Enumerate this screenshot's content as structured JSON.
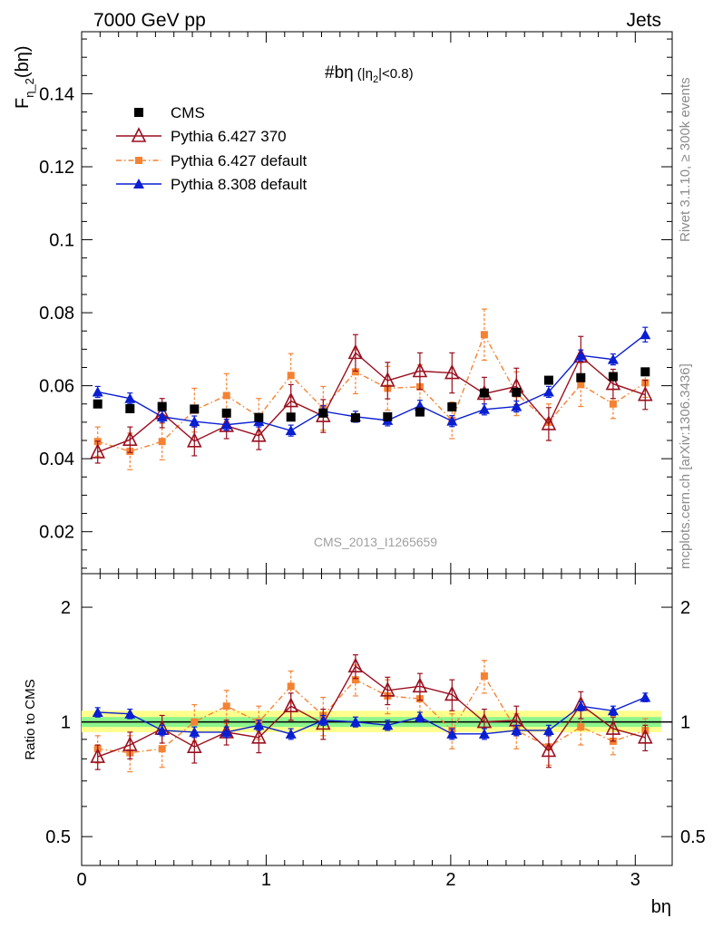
{
  "header": {
    "left": "7000 GeV pp",
    "right": "Jets"
  },
  "side_labels": {
    "rivet": "Rivet 3.1.10, ≥ 300k events",
    "mcplots": "mcplots.cern.ch [arXiv:1306.3436]"
  },
  "analysis_id": "CMS_2013_I1265659",
  "plot_title": {
    "main": "#bη",
    "cut_pre": "(|η",
    "cut_sub": "2",
    "cut_post": "|<0.8)"
  },
  "ylabel": {
    "base": "F",
    "sub": "η_2",
    "arg": "(bη)"
  },
  "ratio_ylabel": "Ratio to CMS",
  "xlabel": "bη",
  "colors": {
    "cms": "#000000",
    "p6_370": "#9a0f1f",
    "p6_def": "#f58232",
    "p8_def": "#0a1ed2",
    "band_inner": "#8cf58c",
    "band_outer": "#ffff8c"
  },
  "chart_data": {
    "type": "scatter",
    "x": [
      0.087,
      0.262,
      0.436,
      0.611,
      0.785,
      0.96,
      1.134,
      1.309,
      1.484,
      1.658,
      1.833,
      2.007,
      2.182,
      2.356,
      2.531,
      2.705,
      2.88,
      3.054
    ],
    "xlim": [
      0,
      3.2
    ],
    "xticks": [
      "0",
      "1",
      "2",
      "3"
    ],
    "main": {
      "ylim": [
        0.0085,
        0.157
      ],
      "yticks": [
        "0.02",
        "0.04",
        "0.06",
        "0.08",
        "0.1",
        "0.12",
        "0.14"
      ],
      "series": [
        {
          "name": "CMS",
          "key": "cms",
          "marker": "square",
          "values": [
            0.055,
            0.0537,
            0.0543,
            0.0536,
            0.0525,
            0.0513,
            0.0514,
            0.0525,
            0.0512,
            0.0515,
            0.0528,
            0.0542,
            0.058,
            0.0582,
            0.0615,
            0.0622,
            0.0625,
            0.0638
          ],
          "errors": [
            0.0005,
            0.0005,
            0.0005,
            0.0005,
            0.0005,
            0.0005,
            0.0005,
            0.0005,
            0.0005,
            0.0005,
            0.0005,
            0.0005,
            0.0005,
            0.0005,
            0.0005,
            0.0005,
            0.0005,
            0.0005
          ]
        },
        {
          "name": "Pythia 6.427 370",
          "key": "p6_370",
          "marker": "triangle-open",
          "line": "solid",
          "values": [
            0.0418,
            0.0452,
            0.0525,
            0.0448,
            0.049,
            0.0463,
            0.0558,
            0.0517,
            0.069,
            0.0614,
            0.064,
            0.0635,
            0.0578,
            0.0598,
            0.0495,
            0.068,
            0.0605,
            0.0575
          ],
          "errors": [
            0.003,
            0.0035,
            0.004,
            0.004,
            0.0035,
            0.0038,
            0.0045,
            0.0045,
            0.005,
            0.005,
            0.005,
            0.0055,
            0.0045,
            0.005,
            0.0045,
            0.0055,
            0.004,
            0.004
          ]
        },
        {
          "name": "Pythia 6.427 default",
          "key": "p6_def",
          "marker": "square-small",
          "line": "dashdot",
          "values": [
            0.0447,
            0.042,
            0.0447,
            0.0533,
            0.0573,
            0.0515,
            0.0628,
            0.0538,
            0.0638,
            0.0593,
            0.0597,
            0.0505,
            0.074,
            0.0578,
            0.05,
            0.0603,
            0.055,
            0.0608
          ],
          "errors": [
            0.004,
            0.005,
            0.005,
            0.006,
            0.006,
            0.005,
            0.006,
            0.006,
            0.006,
            0.006,
            0.006,
            0.005,
            0.007,
            0.006,
            0.005,
            0.006,
            0.004,
            0.004
          ]
        },
        {
          "name": "Pythia 8.308 default",
          "key": "p8_def",
          "marker": "triangle",
          "line": "solid",
          "values": [
            0.0583,
            0.0565,
            0.0515,
            0.0502,
            0.0493,
            0.0502,
            0.0477,
            0.053,
            0.0515,
            0.0505,
            0.0545,
            0.0503,
            0.0535,
            0.0543,
            0.0583,
            0.0683,
            0.0672,
            0.074
          ],
          "errors": [
            0.0015,
            0.0015,
            0.0015,
            0.0015,
            0.0015,
            0.0015,
            0.0015,
            0.0015,
            0.0015,
            0.0015,
            0.0015,
            0.0015,
            0.0015,
            0.0015,
            0.0015,
            0.0015,
            0.0015,
            0.002
          ]
        }
      ]
    },
    "ratio": {
      "ylim": [
        0.42,
        2.45
      ],
      "log": true,
      "yticks": [
        "0.5",
        "1",
        "2"
      ],
      "band_inner": [
        0.97,
        1.03
      ],
      "band_outer": [
        0.94,
        1.07
      ],
      "series": [
        {
          "key": "p6_370",
          "values": [
            0.81,
            0.87,
            0.96,
            0.86,
            0.94,
            0.91,
            1.1,
            0.99,
            1.4,
            1.21,
            1.24,
            1.18,
            1.0,
            1.01,
            0.84,
            1.11,
            0.96,
            0.91
          ],
          "errors": [
            0.06,
            0.07,
            0.08,
            0.08,
            0.07,
            0.08,
            0.09,
            0.09,
            0.1,
            0.1,
            0.1,
            0.11,
            0.08,
            0.09,
            0.08,
            0.09,
            0.07,
            0.07
          ]
        },
        {
          "key": "p6_def",
          "values": [
            0.85,
            0.83,
            0.85,
            1.0,
            1.1,
            1.0,
            1.24,
            1.04,
            1.29,
            1.17,
            1.15,
            0.95,
            1.32,
            0.95,
            0.86,
            0.97,
            0.89,
            0.95
          ],
          "errors": [
            0.07,
            0.09,
            0.09,
            0.11,
            0.11,
            0.1,
            0.12,
            0.12,
            0.12,
            0.12,
            0.12,
            0.1,
            0.13,
            0.1,
            0.09,
            0.1,
            0.07,
            0.07
          ]
        },
        {
          "key": "p8_def",
          "values": [
            1.06,
            1.05,
            0.95,
            0.94,
            0.94,
            0.98,
            0.93,
            1.01,
            1.0,
            0.98,
            1.03,
            0.93,
            0.93,
            0.95,
            0.95,
            1.1,
            1.07,
            1.16
          ],
          "errors": [
            0.03,
            0.03,
            0.03,
            0.03,
            0.03,
            0.03,
            0.03,
            0.03,
            0.03,
            0.03,
            0.03,
            0.03,
            0.03,
            0.03,
            0.03,
            0.03,
            0.03,
            0.03
          ]
        }
      ]
    }
  }
}
